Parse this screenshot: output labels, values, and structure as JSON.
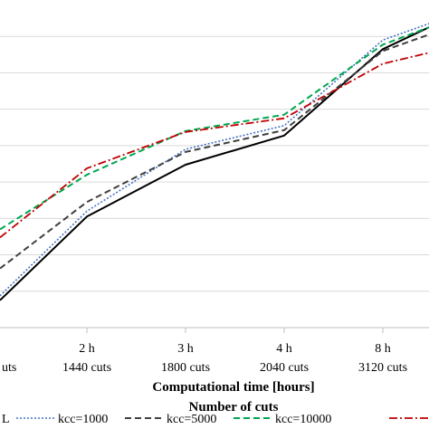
{
  "chart_data": {
    "type": "line",
    "title": "",
    "xlabel": "Computational time [hours]",
    "xlabel2": "Number of cuts",
    "ylabel": "",
    "grid": true,
    "legend_placement": "bottom",
    "categories": [
      {
        "time": "",
        "cuts": "uts"
      },
      {
        "time": "2 h",
        "cuts": "1440 cuts"
      },
      {
        "time": "3 h",
        "cuts": "1800 cuts"
      },
      {
        "time": "4 h",
        "cuts": "2040 cuts"
      },
      {
        "time": "8 h",
        "cuts": "3120 cuts"
      },
      {
        "time": "",
        "cuts": ""
      }
    ],
    "ylim": [
      0,
      360
    ],
    "series": [
      {
        "name": "L",
        "color": "#000000",
        "style": "solid",
        "values": [
          30,
          122,
          179,
          211,
          306,
          330
        ]
      },
      {
        "name": "kcc=1000",
        "color": "#4472c4",
        "style": "dotted",
        "values": [
          35,
          128,
          196,
          222,
          316,
          334
        ]
      },
      {
        "name": "kcc=5000",
        "color": "#404040",
        "style": "dashed",
        "values": [
          65,
          138,
          193,
          217,
          304,
          322
        ]
      },
      {
        "name": "kcc=10000",
        "color": "#00a650",
        "style": "dashed",
        "values": [
          108,
          168,
          216,
          234,
          311,
          330
        ]
      },
      {
        "name": "",
        "color": "#c00000",
        "style": "dashdot",
        "values": [
          99,
          175,
          215,
          230,
          290,
          302
        ]
      }
    ]
  }
}
